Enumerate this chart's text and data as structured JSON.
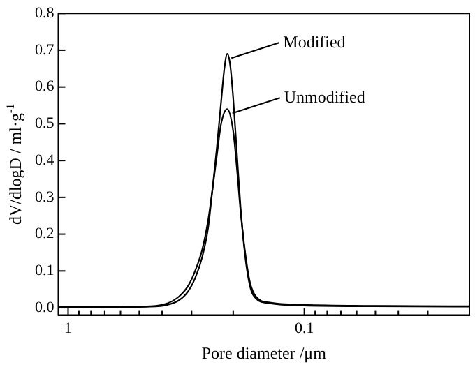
{
  "chart_data": {
    "type": "line",
    "xlabel": "Pore diameter /μm",
    "ylabel": "dV/dlogD / ml·g$^{-1}$",
    "log": "x",
    "xlim": [
      1.1,
      0.02
    ],
    "xticks": [
      1,
      {
        "value": 0.9,
        "label": null
      },
      {
        "value": 0.8,
        "label": null
      },
      {
        "value": 0.7,
        "label": null
      },
      {
        "value": 0.6,
        "label": null
      },
      {
        "value": 0.5,
        "label": null
      },
      {
        "value": 0.4,
        "label": null
      },
      {
        "value": 0.3,
        "label": null
      },
      {
        "value": 0.2,
        "label": null
      },
      0.1,
      {
        "value": 0.09,
        "label": null
      },
      {
        "value": 0.08,
        "label": null
      },
      {
        "value": 0.07,
        "label": null
      },
      {
        "value": 0.06,
        "label": null
      },
      {
        "value": 0.05,
        "label": null
      },
      {
        "value": 0.04,
        "label": null
      },
      {
        "value": 0.03,
        "label": null
      }
    ],
    "ylim": [
      -0.02,
      0.8
    ],
    "yticks": [
      {
        "value": 0,
        "label": "0.0"
      },
      0.1,
      0.2,
      0.3,
      0.4,
      0.5,
      0.6,
      0.7,
      0.8
    ],
    "grid": false,
    "legend": false,
    "marker": "none",
    "line_style": "solid",
    "annotations": [
      {
        "text": "Modified",
        "x": 0.212,
        "y": 0.69
      },
      {
        "text": "Unmodified",
        "x": 0.21,
        "y": 0.54
      }
    ],
    "series": [
      {
        "color": "#000000",
        "x": [
          1.1,
          0.6,
          0.45,
          0.38,
          0.34,
          0.31,
          0.29,
          0.27,
          0.255,
          0.245,
          0.235,
          0.225,
          0.218,
          0.212,
          0.206,
          0.2,
          0.193,
          0.186,
          0.178,
          0.17,
          0.16,
          0.14,
          0.1,
          0.05,
          0.02
        ],
        "values": [
          0.002,
          0.002,
          0.003,
          0.008,
          0.02,
          0.045,
          0.08,
          0.14,
          0.22,
          0.32,
          0.43,
          0.56,
          0.65,
          0.69,
          0.66,
          0.57,
          0.42,
          0.27,
          0.14,
          0.06,
          0.025,
          0.012,
          0.006,
          0.004,
          0.003
        ]
      },
      {
        "color": "#000000",
        "x": [
          1.1,
          0.6,
          0.45,
          0.38,
          0.34,
          0.31,
          0.29,
          0.27,
          0.255,
          0.245,
          0.235,
          0.225,
          0.212,
          0.2,
          0.193,
          0.186,
          0.178,
          0.17,
          0.16,
          0.14,
          0.1,
          0.05,
          0.02
        ],
        "values": [
          0.002,
          0.002,
          0.004,
          0.012,
          0.03,
          0.06,
          0.1,
          0.16,
          0.24,
          0.32,
          0.41,
          0.5,
          0.54,
          0.48,
          0.38,
          0.26,
          0.15,
          0.07,
          0.03,
          0.014,
          0.008,
          0.005,
          0.004
        ]
      }
    ]
  }
}
